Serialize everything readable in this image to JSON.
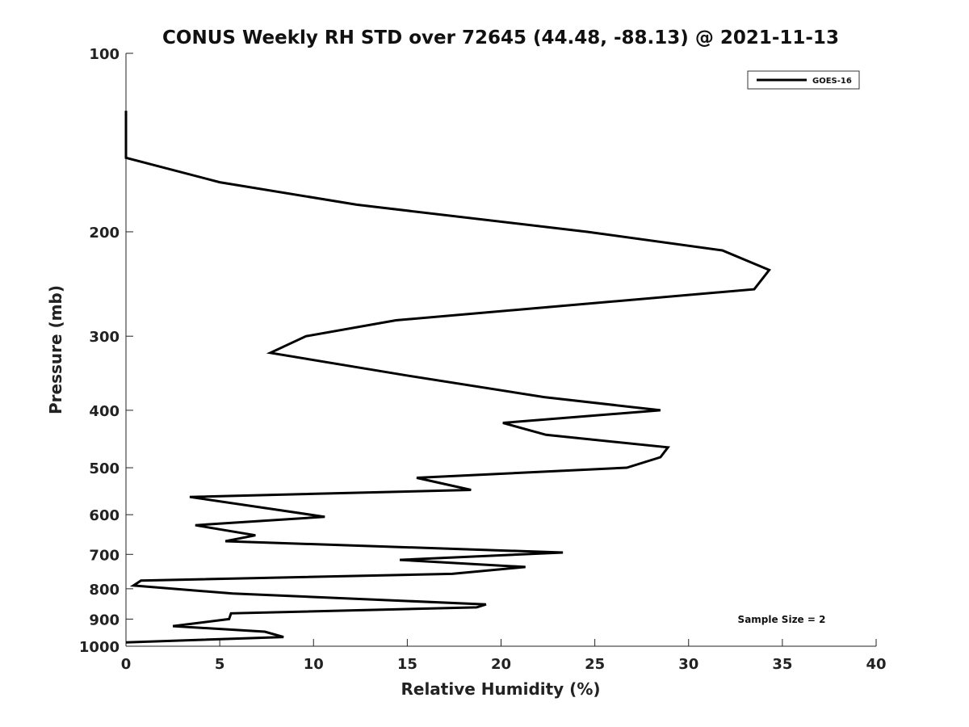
{
  "chart_data": {
    "type": "line",
    "title": "CONUS Weekly RH STD over 72645 (44.48, -88.13) @ 2021-11-13",
    "xlabel": "Relative Humidity (%)",
    "ylabel": "Pressure (mb)",
    "xlim": [
      0,
      40
    ],
    "ylim": [
      100,
      1000
    ],
    "yscale": "log",
    "yreversed": true,
    "xticks": [
      0,
      5,
      10,
      15,
      20,
      25,
      30,
      35,
      40
    ],
    "xtick_labels": [
      "0",
      "5",
      "10",
      "15",
      "20",
      "25",
      "30",
      "35",
      "40"
    ],
    "yticks": [
      100,
      200,
      300,
      400,
      500,
      600,
      700,
      800,
      900,
      1000
    ],
    "ytick_labels": [
      "100",
      "200",
      "300",
      "400",
      "500",
      "600",
      "700",
      "800",
      "900",
      "1000"
    ],
    "grid": false,
    "legend": {
      "position": "top-right",
      "entries": [
        "GOES-16"
      ]
    },
    "annotation": "Sample Size = 2",
    "series": [
      {
        "name": "GOES-16",
        "color": "#000000",
        "x": [
          0,
          0,
          5.0,
          12.3,
          24.6,
          31.8,
          34.3,
          33.5,
          14.4,
          9.6,
          7.7,
          15.1,
          22.3,
          28.5,
          20.1,
          22.4,
          28.9,
          28.5,
          26.7,
          15.5,
          18.4,
          3.4,
          10.6,
          3.7,
          6.9,
          5.3,
          23.3,
          14.6,
          21.3,
          17.4,
          0.8,
          0.4,
          5.7,
          19.2,
          18.7,
          5.6,
          5.5,
          2.5,
          7.4,
          8.4,
          0
        ],
        "y": [
          125,
          150,
          165,
          180,
          200,
          215,
          232,
          250,
          282,
          300,
          320,
          350,
          380,
          400,
          420,
          440,
          462,
          480,
          500,
          520,
          545,
          560,
          605,
          625,
          650,
          665,
          695,
          715,
          735,
          755,
          775,
          790,
          815,
          850,
          860,
          880,
          900,
          925,
          945,
          965,
          985
        ]
      }
    ]
  }
}
